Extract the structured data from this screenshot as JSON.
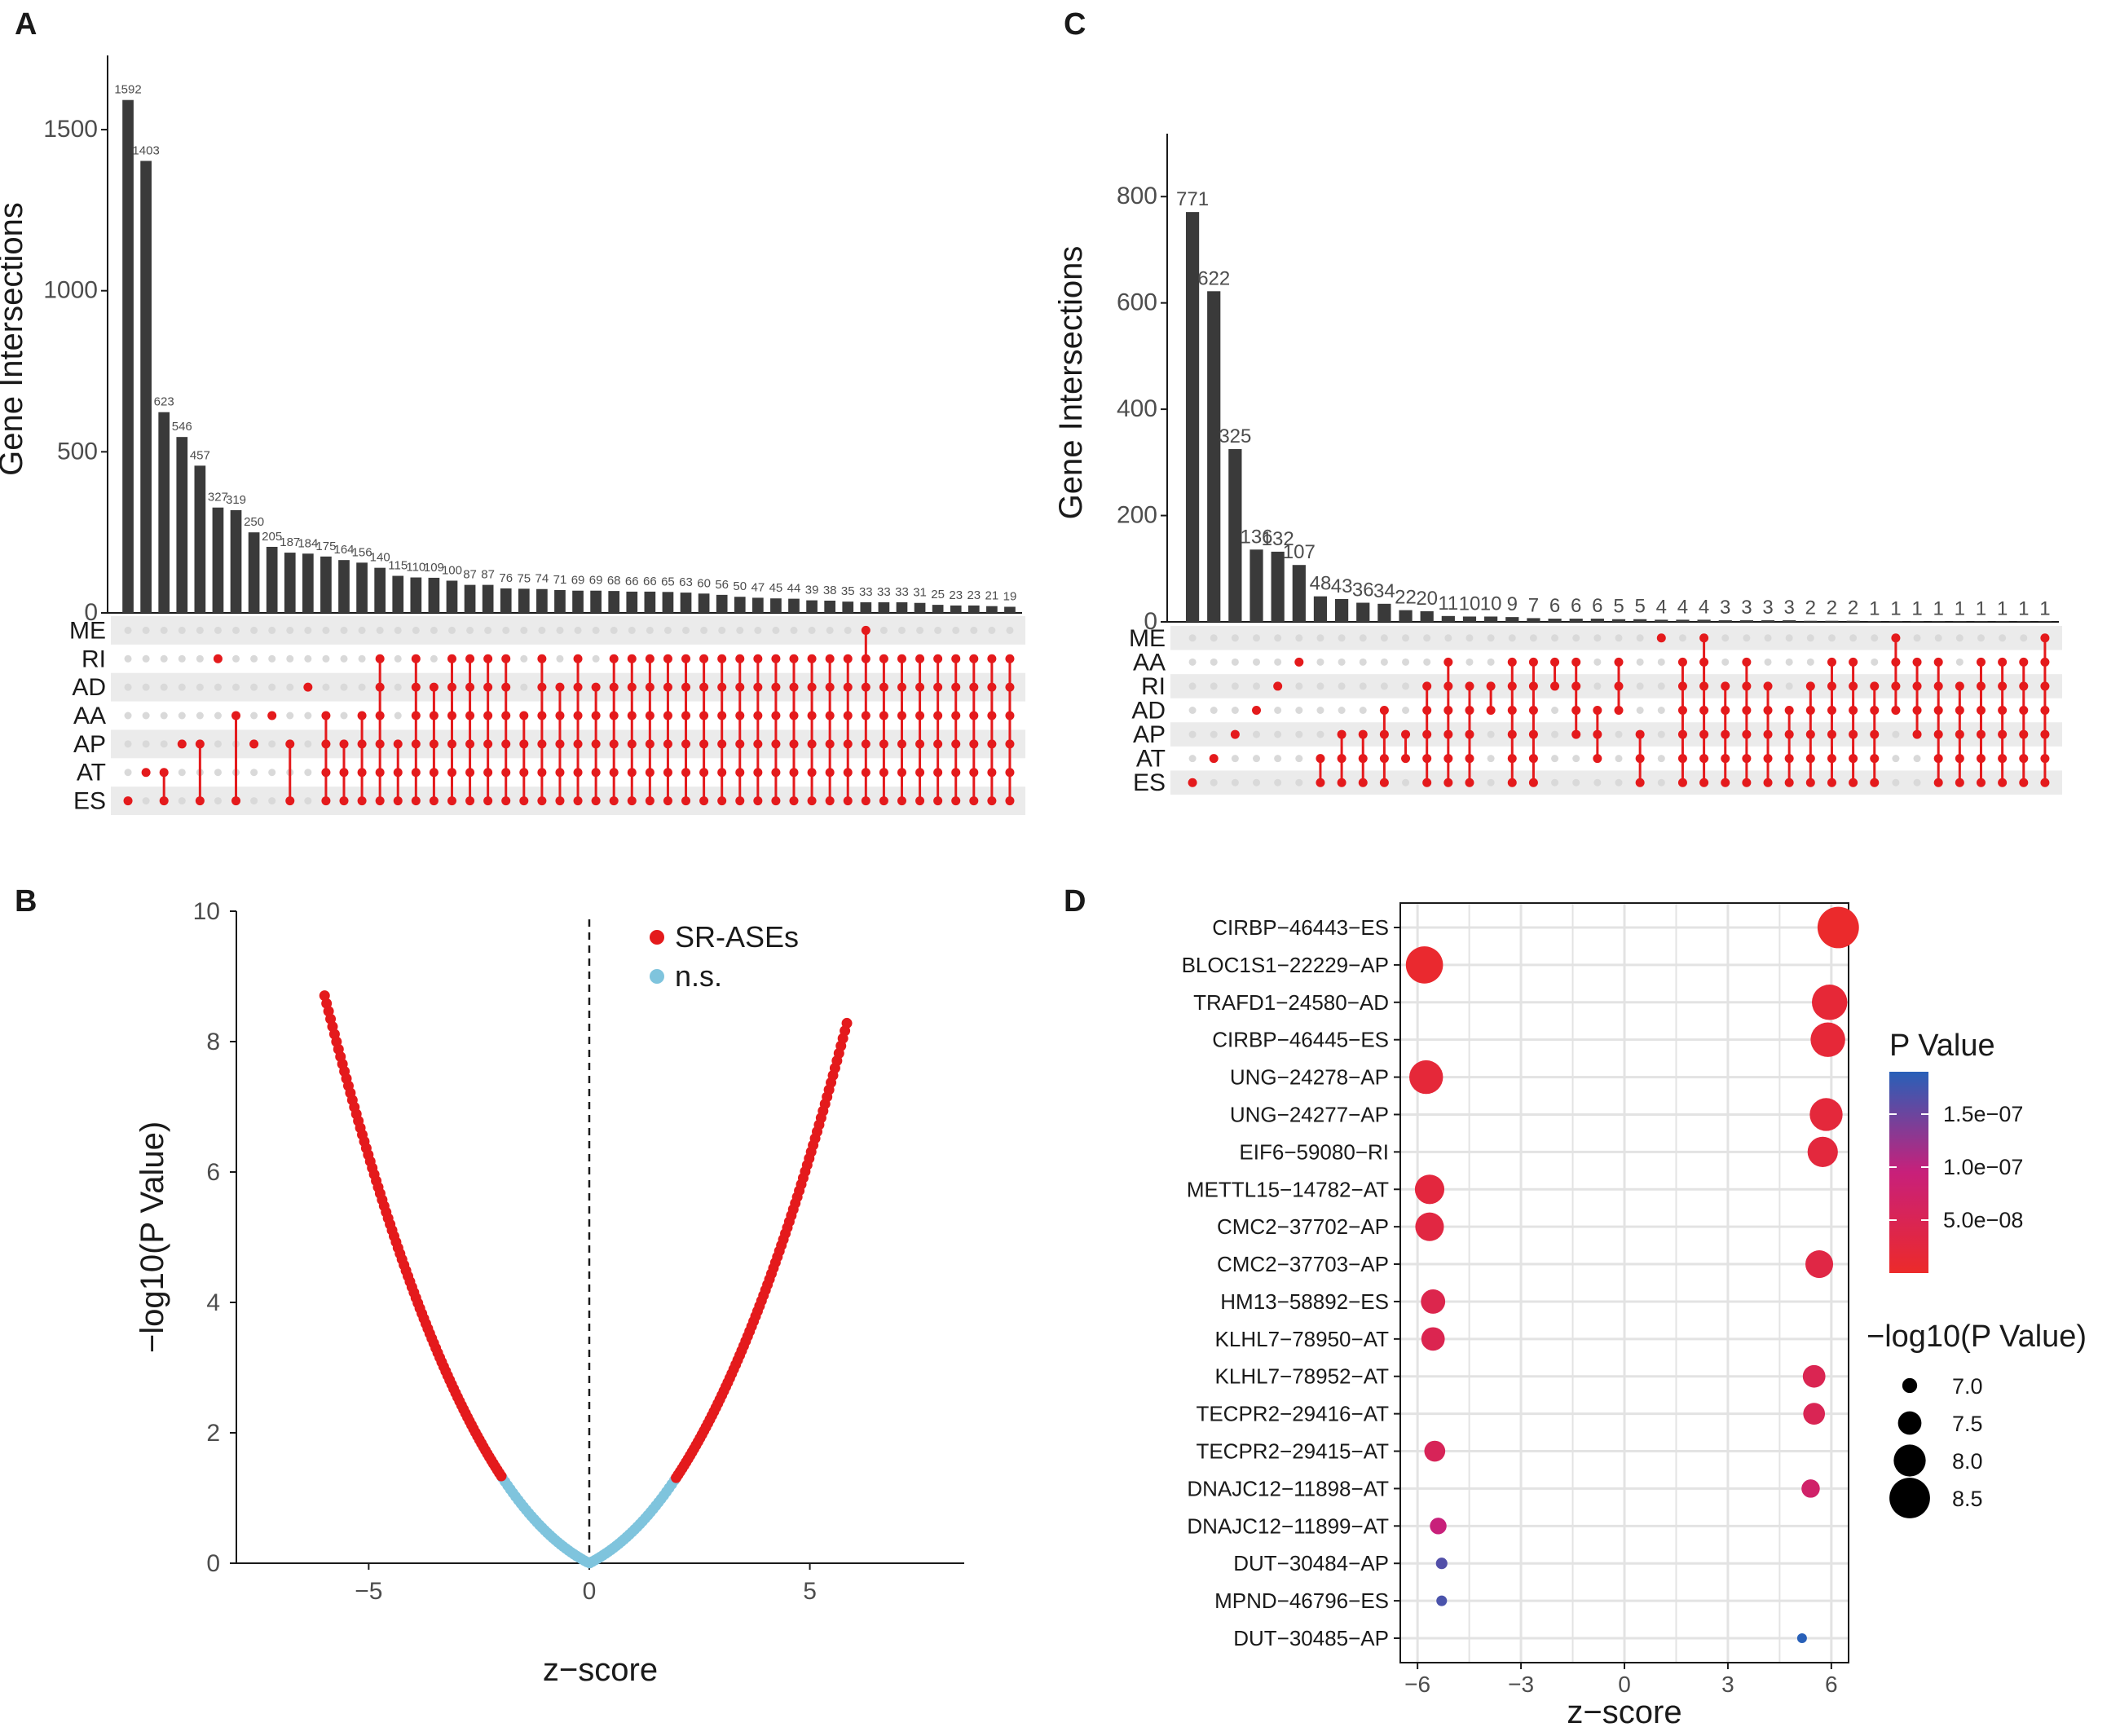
{
  "chart_data": [
    {
      "panel": "A",
      "type": "bar",
      "subtype": "upset",
      "ylabel": "Gene Intersections",
      "ylim": [
        0,
        1700
      ],
      "yticks": [
        0,
        500,
        1000,
        1500
      ],
      "sets": [
        "ME",
        "RI",
        "AD",
        "AA",
        "AP",
        "AT",
        "ES"
      ],
      "values": [
        1592,
        1403,
        623,
        546,
        457,
        327,
        319,
        250,
        205,
        187,
        184,
        175,
        164,
        156,
        140,
        115,
        110,
        109,
        100,
        87,
        87,
        76,
        75,
        74,
        71,
        69,
        69,
        68,
        66,
        66,
        65,
        63,
        60,
        56,
        50,
        47,
        45,
        44,
        39,
        38,
        35,
        33,
        33,
        33,
        31,
        25,
        23,
        23,
        21,
        19
      ],
      "value_labels": [
        "1592",
        "1403",
        "623",
        "546",
        "457",
        "327",
        "319",
        "250",
        "205",
        "187",
        "184",
        "175",
        "164",
        "156",
        "140",
        "115",
        "110",
        "109",
        "100",
        "87",
        "87",
        "76",
        "75",
        "74",
        "71",
        "69",
        "69",
        "68",
        "66",
        "66",
        "65",
        "63",
        "60",
        "56",
        "50",
        "47",
        "45",
        "44",
        "39",
        "38",
        "35",
        "33",
        "33",
        "33",
        "31",
        "25",
        "23",
        "23",
        "21",
        "19"
      ],
      "memberships": [
        [
          "ES"
        ],
        [
          "AT"
        ],
        [
          "ES",
          "AT"
        ],
        [
          "AP"
        ],
        [
          "ES",
          "AP"
        ],
        [
          "RI"
        ],
        [
          "ES",
          "AA"
        ],
        [
          "AP"
        ],
        [
          "AA"
        ],
        [
          "ES",
          "AP"
        ],
        [
          "AD"
        ],
        [
          "ES",
          "AT",
          "AP",
          "AA"
        ],
        [
          "ES",
          "AT",
          "AP"
        ],
        [
          "ES",
          "AT",
          "AP",
          "AA"
        ],
        [
          "ES",
          "AT",
          "AP",
          "AA",
          "AD",
          "RI"
        ],
        [
          "ES",
          "AT",
          "AP"
        ],
        [
          "ES",
          "AT",
          "AP",
          "AA",
          "AD",
          "RI"
        ],
        [
          "ES",
          "AT",
          "AP",
          "AA",
          "AD"
        ],
        [
          "ES",
          "AT",
          "AP",
          "AA",
          "AD",
          "RI"
        ],
        [
          "ES",
          "AT",
          "AP",
          "AA",
          "AD",
          "RI"
        ],
        [
          "ES",
          "AT",
          "AP",
          "AA",
          "AD",
          "RI"
        ],
        [
          "ES",
          "AT",
          "AP",
          "AA",
          "AD",
          "RI"
        ],
        [
          "ES",
          "AT",
          "AP",
          "AA"
        ],
        [
          "ES",
          "AT",
          "AP",
          "AA",
          "AD",
          "RI"
        ],
        [
          "ES",
          "AT",
          "AP",
          "AA",
          "AD"
        ],
        [
          "ES",
          "AT",
          "AP",
          "AA",
          "AD",
          "RI"
        ],
        [
          "ES",
          "AT",
          "AP",
          "AA",
          "AD"
        ],
        [
          "ES",
          "AT",
          "AP",
          "AA",
          "AD",
          "RI"
        ],
        [
          "ES",
          "AT",
          "AP",
          "AA",
          "AD",
          "RI"
        ],
        [
          "ES",
          "AT",
          "AP",
          "AA",
          "AD",
          "RI"
        ],
        [
          "ES",
          "AT",
          "AP",
          "AA",
          "AD",
          "RI"
        ],
        [
          "ES",
          "AT",
          "AP",
          "AA",
          "AD",
          "RI"
        ],
        [
          "ES",
          "AT",
          "AP",
          "AA",
          "AD",
          "RI"
        ],
        [
          "ES",
          "AT",
          "AP",
          "AA",
          "AD",
          "RI"
        ],
        [
          "ES",
          "AT",
          "AP",
          "AA",
          "AD",
          "RI"
        ],
        [
          "ES",
          "AT",
          "AP",
          "AA",
          "AD",
          "RI"
        ],
        [
          "ES",
          "AT",
          "AP",
          "AA",
          "AD",
          "RI"
        ],
        [
          "ES",
          "AT",
          "AP",
          "AA",
          "AD",
          "RI"
        ],
        [
          "ES",
          "AT",
          "AP",
          "AA",
          "AD",
          "RI"
        ],
        [
          "ES",
          "AT",
          "AP",
          "AA",
          "AD",
          "RI"
        ],
        [
          "ES",
          "AT",
          "AP",
          "AA",
          "AD",
          "RI"
        ],
        [
          "ES",
          "AT",
          "AP",
          "AA",
          "AD",
          "RI",
          "ME"
        ],
        [
          "ES",
          "AT",
          "AP",
          "AA",
          "AD",
          "RI"
        ],
        [
          "ES",
          "AT",
          "AP",
          "AA",
          "AD",
          "RI"
        ],
        [
          "ES",
          "AT",
          "AP",
          "AA",
          "AD",
          "RI"
        ],
        [
          "ES",
          "AT",
          "AP",
          "AA",
          "AD",
          "RI"
        ],
        [
          "ES",
          "AT",
          "AP",
          "AA",
          "AD",
          "RI"
        ],
        [
          "ES",
          "AT",
          "AP",
          "AA",
          "AD",
          "RI"
        ],
        [
          "ES",
          "AT",
          "AP",
          "AA",
          "AD",
          "RI"
        ],
        [
          "ES",
          "AT",
          "AP",
          "AA",
          "AD",
          "RI"
        ]
      ]
    },
    {
      "panel": "C",
      "type": "bar",
      "subtype": "upset",
      "ylabel": "Gene Intersections",
      "ylim": [
        0,
        900
      ],
      "yticks": [
        0,
        200,
        400,
        600,
        800
      ],
      "sets": [
        "ME",
        "AA",
        "RI",
        "AD",
        "AP",
        "AT",
        "ES"
      ],
      "values": [
        771,
        622,
        325,
        136,
        132,
        107,
        48,
        43,
        36,
        34,
        22,
        20,
        11,
        10,
        10,
        9,
        7,
        6,
        6,
        6,
        5,
        5,
        4,
        4,
        4,
        3,
        3,
        3,
        3,
        2,
        2,
        2,
        1,
        1,
        1,
        1,
        1,
        1,
        1,
        1,
        1
      ],
      "value_labels": [
        "771",
        "622",
        "325",
        "136",
        "132",
        "107",
        "48",
        "43",
        "36",
        "34",
        "22",
        "20",
        "11",
        "10",
        "10",
        "9",
        "7",
        "6",
        "6",
        "6",
        "5",
        "5",
        "4",
        "4",
        "4",
        "3",
        "3",
        "3",
        "3",
        "2",
        "2",
        "2",
        "1",
        "1",
        "1",
        "1",
        "1",
        "1",
        "1",
        "1",
        "1"
      ],
      "memberships": [
        [
          "ES"
        ],
        [
          "AT"
        ],
        [
          "AP"
        ],
        [
          "AD"
        ],
        [
          "RI"
        ],
        [
          "AA"
        ],
        [
          "ES",
          "AT"
        ],
        [
          "ES",
          "AT",
          "AP"
        ],
        [
          "ES",
          "AT",
          "AP"
        ],
        [
          "ES",
          "AT",
          "AP",
          "AD"
        ],
        [
          "AT",
          "AP"
        ],
        [
          "ES",
          "AT",
          "AP",
          "AD",
          "RI"
        ],
        [
          "ES",
          "AT",
          "AP",
          "AD",
          "RI",
          "AA"
        ],
        [
          "ES",
          "AT",
          "AP",
          "AD",
          "RI"
        ],
        [
          "AD",
          "RI"
        ],
        [
          "ES",
          "AT",
          "AP",
          "AD",
          "RI",
          "AA"
        ],
        [
          "ES",
          "AT",
          "AP",
          "AD",
          "RI",
          "AA"
        ],
        [
          "RI",
          "AA"
        ],
        [
          "AP",
          "AD",
          "RI",
          "AA"
        ],
        [
          "AT",
          "AP",
          "AD"
        ],
        [
          "AD",
          "RI",
          "AA"
        ],
        [
          "ES",
          "AT",
          "AP"
        ],
        [
          "ME"
        ],
        [
          "ES",
          "AT",
          "AP",
          "AD",
          "RI",
          "AA"
        ],
        [
          "ES",
          "AT",
          "AP",
          "AD",
          "RI",
          "AA",
          "ME"
        ],
        [
          "ES",
          "AT",
          "AP",
          "AD",
          "RI"
        ],
        [
          "ES",
          "AT",
          "AP",
          "AD",
          "RI",
          "AA"
        ],
        [
          "ES",
          "AT",
          "AP",
          "AD",
          "RI"
        ],
        [
          "ES",
          "AT",
          "AP",
          "AD"
        ],
        [
          "ES",
          "AT",
          "AP",
          "AD",
          "RI"
        ],
        [
          "ES",
          "AT",
          "AP",
          "AD",
          "RI",
          "AA"
        ],
        [
          "ES",
          "AT",
          "AP",
          "AD",
          "RI",
          "AA"
        ],
        [
          "ES",
          "AT",
          "AP",
          "AD",
          "RI"
        ],
        [
          "AD",
          "RI",
          "AA",
          "ME"
        ],
        [
          "AP",
          "AD",
          "RI",
          "AA"
        ],
        [
          "ES",
          "AT",
          "AP",
          "AD",
          "RI",
          "AA"
        ],
        [
          "ES",
          "AT",
          "AP",
          "AD",
          "RI"
        ],
        [
          "ES",
          "AT",
          "AP",
          "AD",
          "RI",
          "AA"
        ],
        [
          "ES",
          "AT",
          "AP",
          "AD",
          "RI",
          "AA"
        ],
        [
          "ES",
          "AT",
          "AP",
          "AD",
          "RI",
          "AA"
        ],
        [
          "ES",
          "AT",
          "AP",
          "AD",
          "RI",
          "AA",
          "ME"
        ]
      ]
    },
    {
      "panel": "B",
      "type": "scatter",
      "subtype": "volcano",
      "xlabel": "z−score",
      "ylabel": "−log10(P Value)",
      "xlim": [
        -8.0,
        8.5
      ],
      "ylim": [
        0,
        10
      ],
      "xticks": [
        -5,
        0,
        5
      ],
      "xtick_labels": [
        "−5",
        "0",
        "5"
      ],
      "yticks": [
        0,
        2,
        4,
        6,
        8,
        10
      ],
      "curve_relation": "y = -log10(2 * (1 - Phi(|z|)))",
      "significance_cutoff_y": 1.3,
      "series": [
        {
          "name": "SR-ASEs",
          "color": "#e41a1c",
          "z_range_negative": [
            -6.0,
            -1.97
          ],
          "z_range_positive": [
            1.97,
            5.85
          ]
        },
        {
          "name": "n.s.",
          "color": "#7fc4dd",
          "z_range": [
            -1.97,
            1.97
          ]
        }
      ],
      "vline": 0,
      "legend": {
        "entries": [
          "SR-ASEs",
          "n.s."
        ],
        "position": "top-right"
      }
    },
    {
      "panel": "D",
      "type": "scatter",
      "subtype": "dot",
      "xlabel": "z−score",
      "xlim": [
        -6.5,
        6.5
      ],
      "xticks": [
        -6,
        -3,
        0,
        3,
        6
      ],
      "xtick_labels": [
        "−6",
        "−3",
        "0",
        "3",
        "6"
      ],
      "points": [
        {
          "label": "CIRBP−46443−ES",
          "z": 6.2,
          "p": 2.8e-09,
          "logp": 8.55
        },
        {
          "label": "BLOC1S1−22229−AP",
          "z": -5.8,
          "p": 6e-09,
          "logp": 8.3
        },
        {
          "label": "TRAFD1−24580−AD",
          "z": 5.95,
          "p": 1.5e-08,
          "logp": 8.2
        },
        {
          "label": "CIRBP−46445−ES",
          "z": 5.9,
          "p": 1.7e-08,
          "logp": 8.15
        },
        {
          "label": "UNG−24278−AP",
          "z": -5.75,
          "p": 1.8e-08,
          "logp": 8.1
        },
        {
          "label": "UNG−24277−AP",
          "z": 5.85,
          "p": 2e-08,
          "logp": 8.05
        },
        {
          "label": "EIF6−59080−RI",
          "z": 5.75,
          "p": 2.3e-08,
          "logp": 7.9
        },
        {
          "label": "METTL15−14782−AT",
          "z": -5.65,
          "p": 2.4e-08,
          "logp": 7.85
        },
        {
          "label": "CMC2−37702−AP",
          "z": -5.65,
          "p": 2.8e-08,
          "logp": 7.8
        },
        {
          "label": "CMC2−37703−AP",
          "z": 5.65,
          "p": 3.2e-08,
          "logp": 7.75
        },
        {
          "label": "HM13−58892−ES",
          "z": -5.55,
          "p": 4.2e-08,
          "logp": 7.55
        },
        {
          "label": "KLHL7−78950−AT",
          "z": -5.55,
          "p": 4.5e-08,
          "logp": 7.5
        },
        {
          "label": "KLHL7−78952−AT",
          "z": 5.5,
          "p": 4.8e-08,
          "logp": 7.45
        },
        {
          "label": "TECPR2−29416−AT",
          "z": 5.5,
          "p": 5e-08,
          "logp": 7.4
        },
        {
          "label": "TECPR2−29415−AT",
          "z": -5.5,
          "p": 5.5e-08,
          "logp": 7.35
        },
        {
          "label": "DNAJC12−11898−AT",
          "z": 5.4,
          "p": 7.5e-08,
          "logp": 7.2
        },
        {
          "label": "DNAJC12−11899−AT",
          "z": -5.4,
          "p": 9.5e-08,
          "logp": 7.1
        },
        {
          "label": "DUT−30484−AP",
          "z": -5.3,
          "p": 1.65e-07,
          "logp": 6.8
        },
        {
          "label": "MPND−46796−ES",
          "z": -5.3,
          "p": 1.7e-07,
          "logp": 6.75
        },
        {
          "label": "DUT−30485−AP",
          "z": 5.15,
          "p": 1.9e-07,
          "logp": 6.7
        }
      ],
      "color_legend": {
        "title": "P Value",
        "ticks": [
          5e-08,
          1e-07,
          1.5e-07
        ],
        "tick_labels": [
          "5.0e−08",
          "1.0e−07",
          "1.5e−07"
        ],
        "range": [
          0,
          1.9e-07
        ],
        "low_color": "#ec2a2a",
        "mid_color": "#c8207a",
        "high_color": "#2860b8"
      },
      "size_legend": {
        "title": "−log10(P Value)",
        "values": [
          7.0,
          7.5,
          8.0,
          8.5
        ],
        "labels": [
          "7.0",
          "7.5",
          "8.0",
          "8.5"
        ]
      }
    }
  ],
  "panel_labels": {
    "a": "A",
    "b": "B",
    "c": "C",
    "d": "D"
  },
  "colors": {
    "bar": "#3a3a3a",
    "dot_on": "#e41a1c",
    "dot_off": "#d9d9d9",
    "stripe": "#ebebeb",
    "grid": "#e3e3e3",
    "axis": "#1a1a1a",
    "text": "#1a1a1a",
    "tick_text": "#4d4d4d"
  }
}
